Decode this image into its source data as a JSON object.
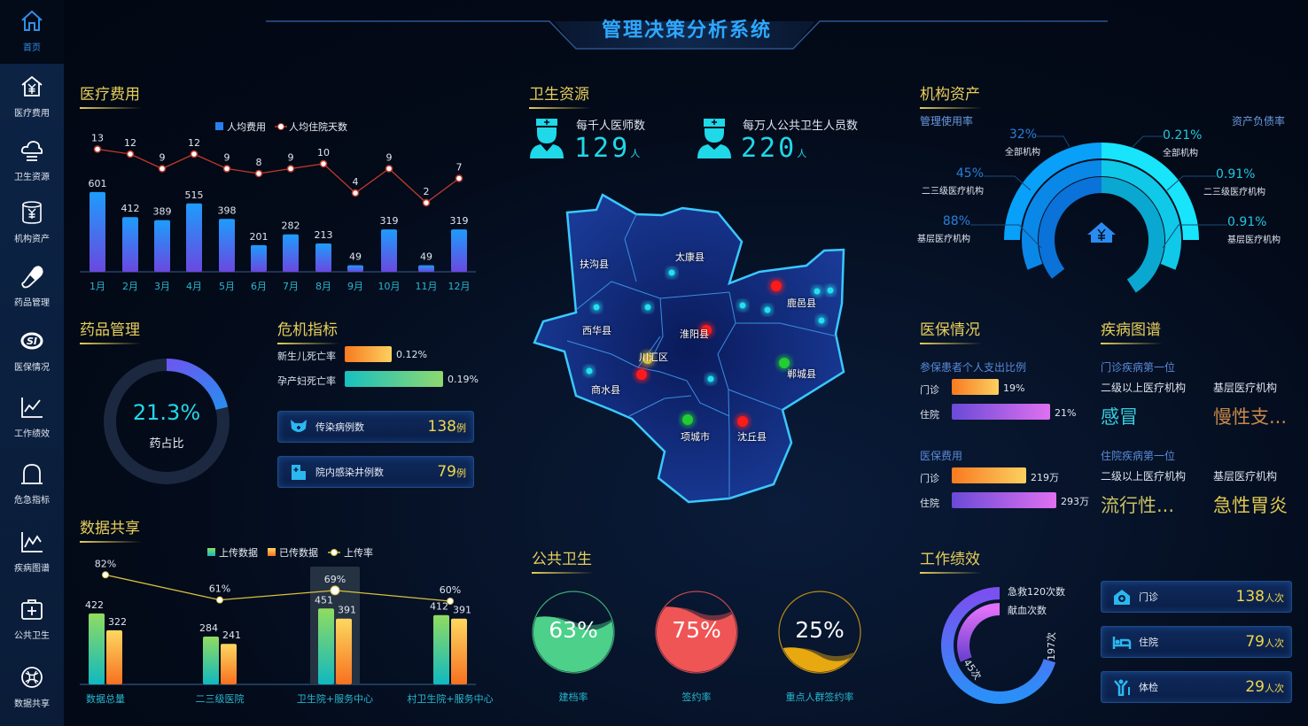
{
  "header": {
    "title": "管理决策分析系统"
  },
  "sidebar": {
    "items": [
      {
        "label": "首页",
        "icon": "home-icon"
      },
      {
        "label": "医疗费用",
        "icon": "house-yuan-icon"
      },
      {
        "label": "卫生资源",
        "icon": "cloud-icon"
      },
      {
        "label": "机构资产",
        "icon": "coin-stack-icon"
      },
      {
        "label": "药品管理",
        "icon": "pill-icon"
      },
      {
        "label": "医保情况",
        "icon": "si-icon"
      },
      {
        "label": "工作绩效",
        "icon": "line-chart-icon"
      },
      {
        "label": "危急指标",
        "icon": "alarm-icon"
      },
      {
        "label": "疾病图谱",
        "icon": "trend-chart-icon"
      },
      {
        "label": "公共卫生",
        "icon": "medical-kit-icon"
      },
      {
        "label": "数据共享",
        "icon": "share-icon"
      }
    ]
  },
  "medical_cost": {
    "title": "医疗费用"
  },
  "drug": {
    "title": "药品管理",
    "value": "21.3%",
    "percent": 21.3,
    "label": "药占比"
  },
  "crisis": {
    "title": "危机指标",
    "bars": [
      {
        "label": "新生儿死亡率",
        "value": "0.12%"
      },
      {
        "label": "孕产妇死亡率",
        "value": "0.19%"
      }
    ],
    "cards": [
      {
        "label": "传染病例数",
        "value": "138",
        "unit": "例",
        "icon": "virus-icon"
      },
      {
        "label": "院内感染井例数",
        "value": "79",
        "unit": "例",
        "icon": "hospital-icon"
      }
    ]
  },
  "data_share": {
    "title": "数据共享"
  },
  "health_resource": {
    "title": "卫生资源",
    "stats": [
      {
        "label": "每千人医师数",
        "value": "129",
        "unit": "人",
        "icon": "doctor-icon"
      },
      {
        "label": "每万人公共卫生人员数",
        "value": "220",
        "unit": "人",
        "icon": "nurse-icon"
      }
    ]
  },
  "map": {
    "regions": [
      "扶沟县",
      "太康县",
      "西华县",
      "淮阳县",
      "川汇区",
      "商水县",
      "鹿邑县",
      "郸城县",
      "项城市",
      "沈丘县"
    ],
    "marker_colors": {
      "red": "#ff1a1a",
      "green": "#22cc33",
      "yellow": "#e8c840",
      "cyan": "#22e0f0"
    }
  },
  "public_health": {
    "title": "公共卫生",
    "gauges": [
      {
        "label": "建档率",
        "value": "63%",
        "percent": 63,
        "color": "#4cd08a"
      },
      {
        "label": "签约率",
        "value": "75%",
        "percent": 75,
        "color": "#f05555"
      },
      {
        "label": "重点人群签约率",
        "value": "25%",
        "percent": 25,
        "color": "#e8a810"
      }
    ]
  },
  "assets": {
    "title": "机构资产",
    "left_title": "管理使用率",
    "right_title": "资产负债率",
    "left": [
      {
        "value": "32%",
        "label": "全部机构"
      },
      {
        "value": "45%",
        "label": "二三级医疗机构"
      },
      {
        "value": "88%",
        "label": "基层医疗机构"
      }
    ],
    "right": [
      {
        "value": "0.21%",
        "label": "全部机构"
      },
      {
        "value": "0.91%",
        "label": "二三级医疗机构"
      },
      {
        "value": "0.91%",
        "label": "基层医疗机构"
      }
    ]
  },
  "insurance": {
    "title": "医保情况",
    "ratio": {
      "title": "参保患者个人支出比例",
      "rows": [
        {
          "label": "门诊",
          "value": "19%"
        },
        {
          "label": "住院",
          "value": "21%"
        }
      ]
    },
    "cost": {
      "title": "医保费用",
      "rows": [
        {
          "label": "门诊",
          "value": "219万"
        },
        {
          "label": "住院",
          "value": "293万"
        }
      ]
    }
  },
  "disease": {
    "title": "疾病图谱",
    "outpatient": {
      "title": "门诊疾病第一位",
      "col1": "二级以上医疗机构",
      "col2": "基层医疗机构",
      "val1": "感冒",
      "val2": "慢性支..."
    },
    "inpatient": {
      "title": "住院疾病第一位",
      "col1": "二级以上医疗机构",
      "col2": "基层医疗机构",
      "val1": "流行性...",
      "val2": "急性胃炎"
    }
  },
  "performance": {
    "title": "工作绩效",
    "rings": [
      {
        "label": "急救120次数",
        "value": "197次"
      },
      {
        "label": "献血次数",
        "value": "45次"
      }
    ],
    "cards": [
      {
        "label": "门诊",
        "value": "138",
        "unit": "人次",
        "icon": "clinic-icon"
      },
      {
        "label": "住院",
        "value": "79",
        "unit": "人次",
        "icon": "bed-icon"
      },
      {
        "label": "体检",
        "value": "29",
        "unit": "人次",
        "icon": "checkup-icon"
      }
    ]
  },
  "chart_data": [
    {
      "type": "bar",
      "categories": [
        "1月",
        "2月",
        "3月",
        "4月",
        "5月",
        "6月",
        "7月",
        "8月",
        "9月",
        "10月",
        "11月",
        "12月"
      ],
      "series": [
        {
          "name": "人均费用",
          "type": "bar",
          "values": [
            601,
            412,
            389,
            515,
            398,
            201,
            282,
            213,
            49,
            319,
            49,
            319
          ],
          "color": "#2196f3"
        },
        {
          "name": "人均住院天数",
          "type": "line",
          "values": [
            13,
            12,
            9,
            12,
            9,
            8,
            9,
            10,
            4,
            9,
            2,
            7
          ],
          "color": "#c0392b"
        }
      ]
    },
    {
      "type": "bar",
      "categories": [
        "数据总量",
        "二三级医院",
        "卫生院+服务中心",
        "村卫生院+服务中心"
      ],
      "series": [
        {
          "name": "上传数据",
          "type": "bar",
          "values": [
            422,
            284,
            451,
            412
          ],
          "color": "#5ed87a"
        },
        {
          "name": "已传数据",
          "type": "bar",
          "values": [
            322,
            241,
            391,
            391
          ],
          "color": "#f8a030"
        },
        {
          "name": "上传率",
          "type": "line",
          "values": [
            "82%",
            "61%",
            "69%",
            "60%"
          ],
          "color": "#d8c040"
        }
      ],
      "highlighted_category": "卫生院+服务中心"
    }
  ]
}
